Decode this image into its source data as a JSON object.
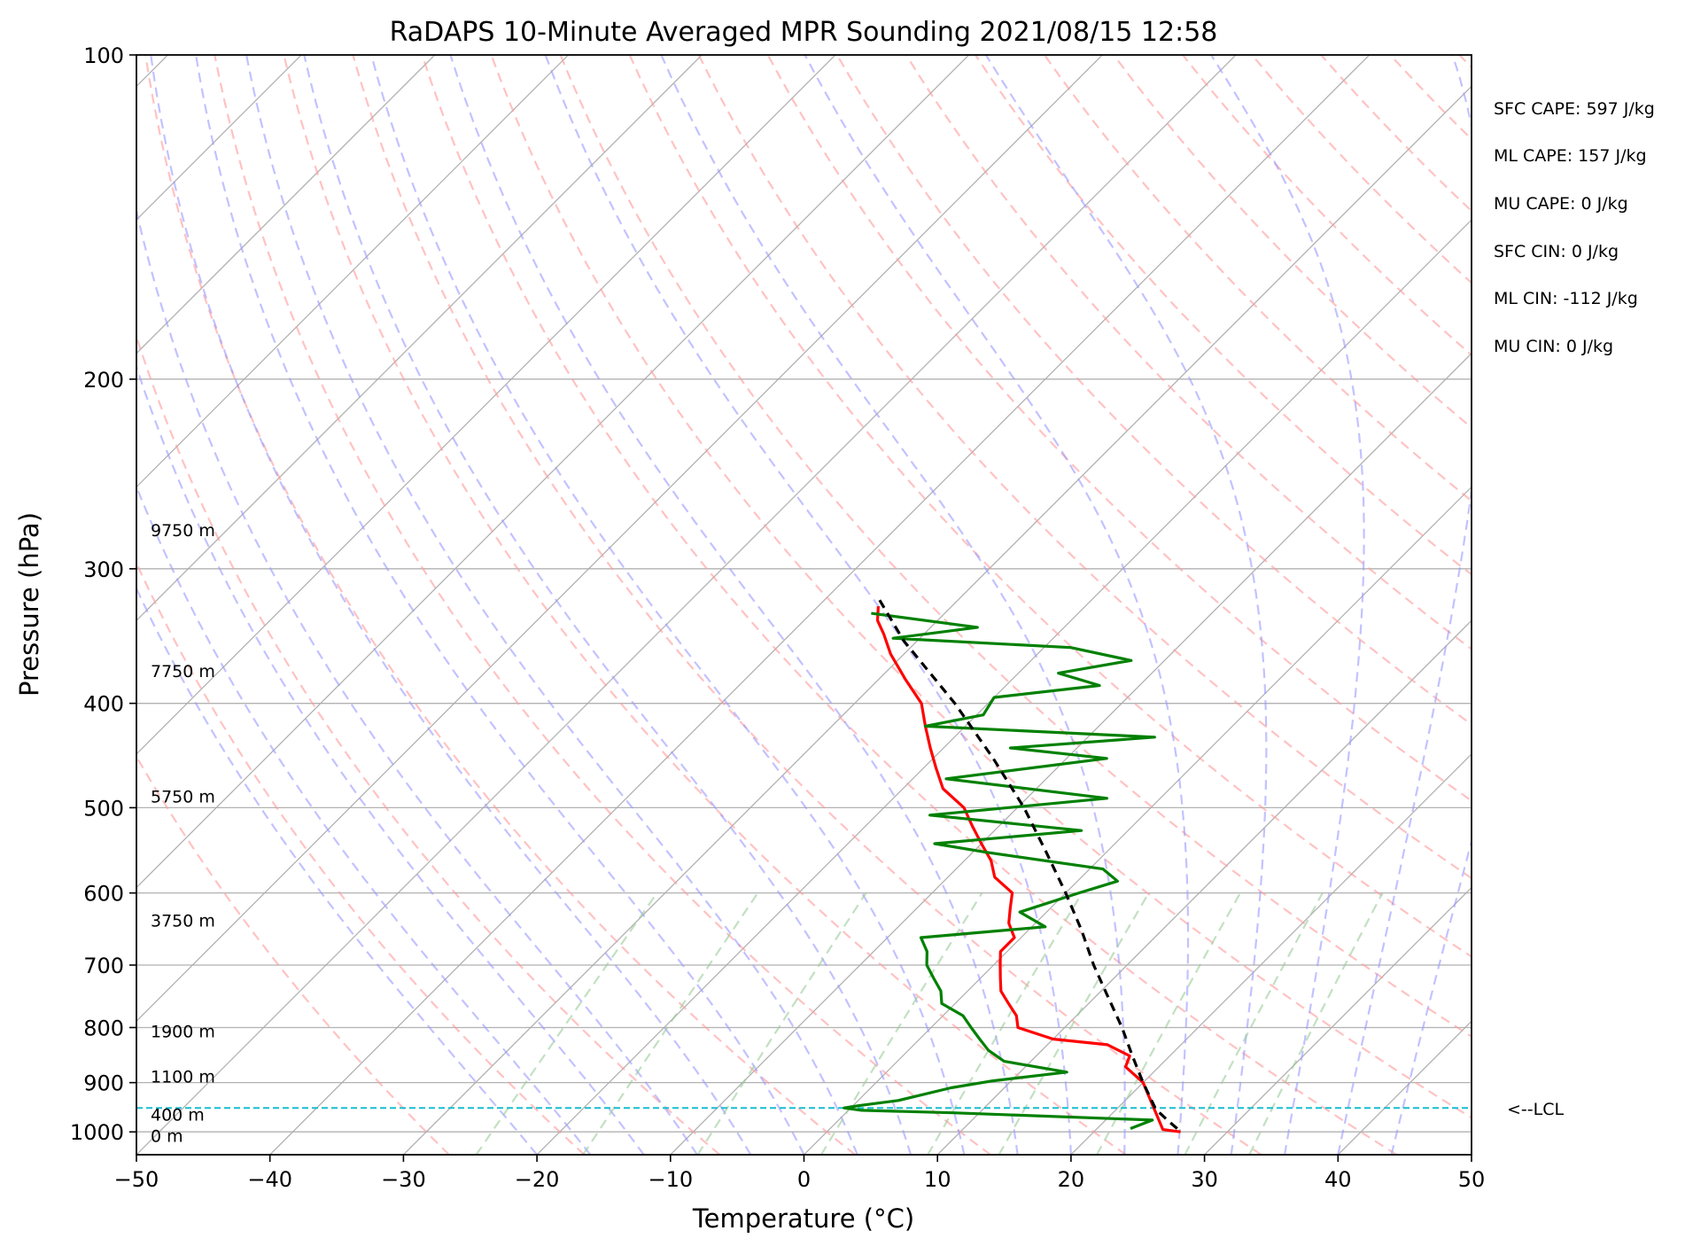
{
  "title": "RaDAPS 10-Minute Averaged MPR Sounding 2021/08/15 12:58",
  "xlabel": "Temperature (°C)",
  "ylabel": "Pressure (hPa)",
  "stats": [
    "SFC CAPE: 597 J/kg",
    "ML CAPE: 157 J/kg",
    "MU CAPE: 0 J/kg",
    "SFC CIN: 0 J/kg",
    "ML CIN: -112 J/kg",
    "MU CIN: 0 J/kg"
  ],
  "lcl_label": "<--LCL",
  "colors": {
    "temperature": "#ff0000",
    "dewpoint": "#008000",
    "parcel": "#000000",
    "lcl": "#17becf",
    "dry_adiabat": "#ff9999",
    "moist_adiabat": "#9999ff",
    "mixing_ratio": "#99cc99",
    "isotherm": "#aaaaaa",
    "isobar": "#aaaaaa"
  },
  "chart_data": {
    "type": "line",
    "diagram": "skew-T log-p",
    "xlim": [
      -50,
      50
    ],
    "ylim": [
      1050,
      100
    ],
    "y_scale": "log",
    "xticks": [
      -50,
      -40,
      -30,
      -20,
      -10,
      0,
      10,
      20,
      30,
      40,
      50
    ],
    "yticks": [
      100,
      200,
      300,
      400,
      500,
      600,
      700,
      800,
      900,
      1000
    ],
    "grid": true,
    "lcl_pressure": 950,
    "height_labels": [
      {
        "text": "0 m",
        "pressure": 1008
      },
      {
        "text": "400 m",
        "pressure": 963
      },
      {
        "text": "1100 m",
        "pressure": 888
      },
      {
        "text": "1900 m",
        "pressure": 806
      },
      {
        "text": "3750 m",
        "pressure": 636
      },
      {
        "text": "5750 m",
        "pressure": 488
      },
      {
        "text": "7750 m",
        "pressure": 373
      },
      {
        "text": "9750 m",
        "pressure": 276
      }
    ],
    "series": [
      {
        "key": "temperature",
        "points": [
          [
            1000,
            26.5
          ],
          [
            995,
            25.0
          ],
          [
            900,
            20.0
          ],
          [
            870,
            17.5
          ],
          [
            850,
            17.0
          ],
          [
            830,
            14.5
          ],
          [
            820,
            10.0
          ],
          [
            800,
            6.5
          ],
          [
            780,
            5.5
          ],
          [
            760,
            4.0
          ],
          [
            740,
            2.5
          ],
          [
            720,
            1.5
          ],
          [
            700,
            0.5
          ],
          [
            680,
            -0.5
          ],
          [
            660,
            -0.5
          ],
          [
            640,
            -2.0
          ],
          [
            620,
            -3.0
          ],
          [
            600,
            -4.0
          ],
          [
            580,
            -6.5
          ],
          [
            560,
            -8.0
          ],
          [
            540,
            -10.0
          ],
          [
            520,
            -12.0
          ],
          [
            500,
            -14.0
          ],
          [
            480,
            -17.0
          ],
          [
            460,
            -19.0
          ],
          [
            440,
            -21.0
          ],
          [
            420,
            -23.0
          ],
          [
            400,
            -25.0
          ],
          [
            380,
            -28.0
          ],
          [
            360,
            -31.0
          ],
          [
            345,
            -33.0
          ],
          [
            335,
            -34.5
          ],
          [
            325,
            -35.5
          ]
        ]
      },
      {
        "key": "dewpoint",
        "points": [
          [
            993,
            22.5
          ],
          [
            975,
            23.5
          ],
          [
            960,
            8.0
          ],
          [
            955,
            1.0
          ],
          [
            950,
            -0.5
          ],
          [
            945,
            0.5
          ],
          [
            935,
            3.0
          ],
          [
            910,
            6.0
          ],
          [
            897,
            8.5
          ],
          [
            880,
            13.5
          ],
          [
            860,
            8.0
          ],
          [
            840,
            6.0
          ],
          [
            820,
            4.5
          ],
          [
            800,
            3.0
          ],
          [
            780,
            1.5
          ],
          [
            760,
            -1.0
          ],
          [
            740,
            -2.0
          ],
          [
            720,
            -3.5
          ],
          [
            700,
            -5.0
          ],
          [
            680,
            -6.0
          ],
          [
            660,
            -7.5
          ],
          [
            645,
            1.0
          ],
          [
            625,
            -2.0
          ],
          [
            600,
            1.0
          ],
          [
            585,
            3.0
          ],
          [
            570,
            1.0
          ],
          [
            550,
            -9.0
          ],
          [
            540,
            -13.5
          ],
          [
            525,
            -3.5
          ],
          [
            508,
            -16.0
          ],
          [
            490,
            -4.0
          ],
          [
            470,
            -17.5
          ],
          [
            450,
            -7.0
          ],
          [
            440,
            -15.0
          ],
          [
            430,
            -5.0
          ],
          [
            420,
            -23.0
          ],
          [
            410,
            -19.5
          ],
          [
            395,
            -20.0
          ],
          [
            385,
            -13.0
          ],
          [
            375,
            -17.0
          ],
          [
            365,
            -12.5
          ],
          [
            355,
            -18.0
          ],
          [
            348,
            -32.0
          ],
          [
            340,
            -26.5
          ],
          [
            330,
            -35.5
          ]
        ]
      },
      {
        "key": "parcel",
        "points": [
          [
            993,
            26.0
          ],
          [
            980,
            25.0
          ],
          [
            960,
            23.5
          ],
          [
            950,
            22.8
          ],
          [
            900,
            20.0
          ],
          [
            850,
            17.2
          ],
          [
            800,
            14.3
          ],
          [
            750,
            11.0
          ],
          [
            700,
            7.5
          ],
          [
            650,
            4.0
          ],
          [
            600,
            0.0
          ],
          [
            550,
            -4.5
          ],
          [
            500,
            -9.5
          ],
          [
            450,
            -15.5
          ],
          [
            400,
            -22.5
          ],
          [
            350,
            -31.0
          ],
          [
            320,
            -36.0
          ]
        ]
      }
    ]
  }
}
